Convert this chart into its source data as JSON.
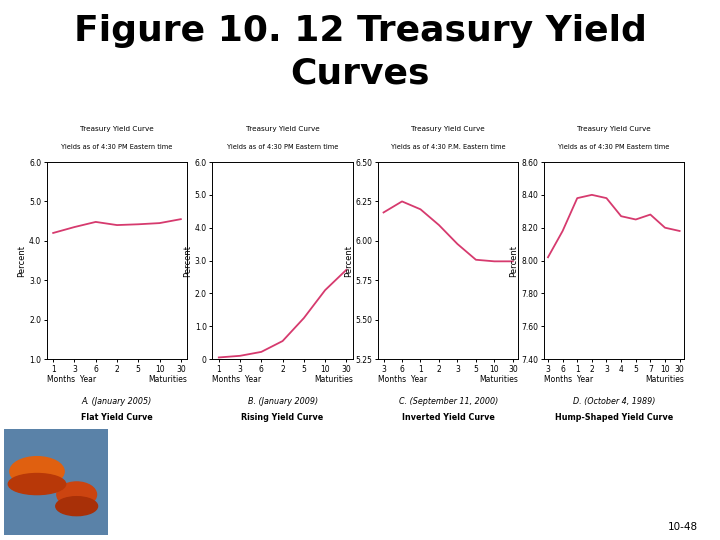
{
  "title_line1": "Figure 10. 12 Treasury Yield",
  "title_line2": "Curves",
  "title_fontsize": 26,
  "title_fontweight": "bold",
  "background_color": "#ffffff",
  "line_color": "#d63a6e",
  "line_width": 1.3,
  "charts": [
    {
      "label_top": "Treasury Yield Curve",
      "label_top2": "Yields as of 4:30 PM Eastern time",
      "ylabel": "Percent",
      "ylim": [
        1.0,
        6.0
      ],
      "yticks": [
        1.0,
        2.0,
        3.0,
        4.0,
        5.0,
        6.0
      ],
      "ytick_labels": [
        "1.0",
        "2.0",
        "3.0",
        "4.0",
        "5.0",
        "6.0"
      ],
      "xtick_labels": [
        "1",
        "3",
        "6",
        "2",
        "5",
        "10",
        "30"
      ],
      "x": [
        0,
        1,
        2,
        3,
        4,
        5,
        6
      ],
      "y": [
        4.2,
        4.35,
        4.48,
        4.4,
        4.42,
        4.45,
        4.55
      ],
      "caption_line1": "A. (January 2005)",
      "caption_line2": "Flat Yield Curve",
      "caption1_style": "italic",
      "caption2_weight": "bold"
    },
    {
      "label_top": "Treasury Yield Curve",
      "label_top2": "Yields as of 4:30 PM Eastern time",
      "ylabel": "Percent",
      "ylim": [
        0,
        6.0
      ],
      "yticks": [
        0,
        1.0,
        2.0,
        3.0,
        4.0,
        5.0,
        6.0
      ],
      "ytick_labels": [
        "0",
        "1.0",
        "2.0",
        "3.0",
        "4.0",
        "5.0",
        "6.0"
      ],
      "xtick_labels": [
        "1",
        "3",
        "6",
        "2",
        "5",
        "10",
        "30"
      ],
      "x": [
        0,
        1,
        2,
        3,
        4,
        5,
        6
      ],
      "y": [
        0.05,
        0.1,
        0.22,
        0.55,
        1.25,
        2.1,
        2.72
      ],
      "caption_line1": "B. (January 2009)",
      "caption_line2": "Rising Yield Curve",
      "caption1_style": "italic",
      "caption2_weight": "bold"
    },
    {
      "label_top": "Treasury Yield Curve",
      "label_top2": "Yields as of 4:30 P.M. Eastern time",
      "ylabel": "Percent",
      "ylim": [
        5.25,
        6.5
      ],
      "yticks": [
        5.25,
        5.5,
        5.75,
        6.0,
        6.25,
        6.5
      ],
      "ytick_labels": [
        "5.25",
        "5.50",
        "5.75",
        "6.00",
        "6.25",
        "6.50"
      ],
      "xtick_labels": [
        "3",
        "6",
        "1",
        "2",
        "3",
        "5",
        "10",
        "30"
      ],
      "x": [
        0,
        1,
        2,
        3,
        4,
        5,
        6,
        7
      ],
      "y": [
        6.18,
        6.25,
        6.2,
        6.1,
        5.98,
        5.88,
        5.87,
        5.87
      ],
      "caption_line1": "C. (September 11, 2000)",
      "caption_line2": "Inverted Yield Curve",
      "caption1_style": "italic",
      "caption2_weight": "bold"
    },
    {
      "label_top": "Treasury Yield Curve",
      "label_top2": "Yields as of 4:30 PM Eastern time",
      "ylabel": "Percent",
      "ylim": [
        7.4,
        8.6
      ],
      "yticks": [
        7.4,
        7.6,
        7.8,
        8.0,
        8.2,
        8.4,
        8.6
      ],
      "ytick_labels": [
        "7.40",
        "7.60",
        "7.80",
        "8.00",
        "8.20",
        "8.40",
        "8.60"
      ],
      "xtick_labels": [
        "3",
        "6",
        "1",
        "2",
        "3",
        "4",
        "5",
        "7",
        "10",
        "30"
      ],
      "x": [
        0,
        1,
        2,
        3,
        4,
        5,
        6,
        7,
        8,
        9
      ],
      "y": [
        8.02,
        8.18,
        8.38,
        8.4,
        8.38,
        8.27,
        8.25,
        8.28,
        8.2,
        8.18
      ],
      "caption_line1": "D. (October 4, 1989)",
      "caption_line2": "Hump-Shaped Yield Curve",
      "caption1_style": "italic",
      "caption2_weight": "bold"
    }
  ],
  "page_number": "10-48"
}
